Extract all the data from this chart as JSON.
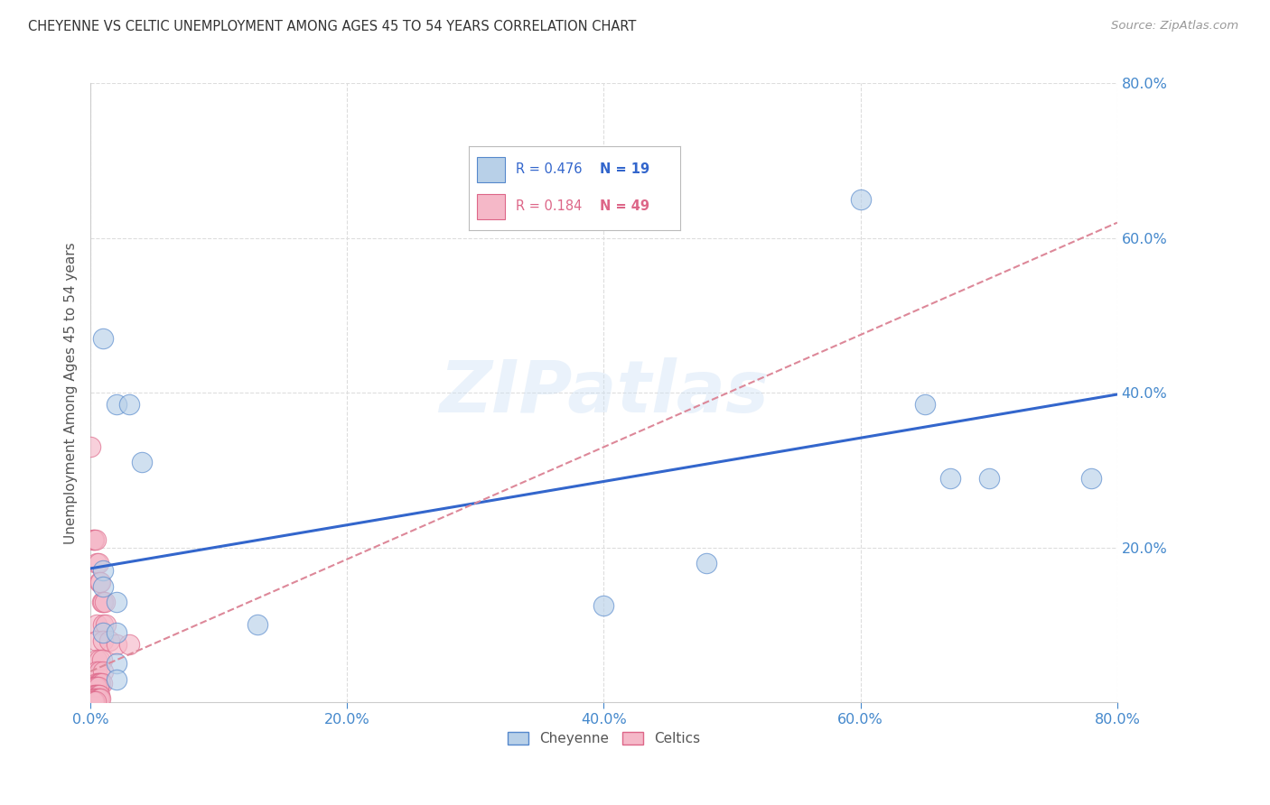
{
  "title": "CHEYENNE VS CELTIC UNEMPLOYMENT AMONG AGES 45 TO 54 YEARS CORRELATION CHART",
  "source": "Source: ZipAtlas.com",
  "ylabel": "Unemployment Among Ages 45 to 54 years",
  "xlim": [
    0.0,
    0.8
  ],
  "ylim": [
    0.0,
    0.8
  ],
  "xticks": [
    0.0,
    0.2,
    0.4,
    0.6,
    0.8
  ],
  "yticks": [
    0.2,
    0.4,
    0.6,
    0.8
  ],
  "cheyenne_color": "#b8d0e8",
  "celtics_color": "#f5b8c8",
  "cheyenne_edge_color": "#5588cc",
  "celtics_edge_color": "#dd6688",
  "cheyenne_line_color": "#3366cc",
  "celtics_line_color": "#dd8899",
  "grid_color": "#dddddd",
  "tick_color": "#4488cc",
  "legend_R_cheyenne": "0.476",
  "legend_N_cheyenne": "19",
  "legend_R_celtics": "0.184",
  "legend_N_celtics": "49",
  "cheyenne_line": [
    0.0,
    0.173,
    0.8,
    0.398
  ],
  "celtics_line": [
    0.0,
    0.04,
    0.8,
    0.62
  ],
  "cheyenne_points": [
    [
      0.01,
      0.47
    ],
    [
      0.02,
      0.385
    ],
    [
      0.03,
      0.385
    ],
    [
      0.04,
      0.31
    ],
    [
      0.01,
      0.17
    ],
    [
      0.01,
      0.15
    ],
    [
      0.02,
      0.13
    ],
    [
      0.13,
      0.1
    ],
    [
      0.01,
      0.09
    ],
    [
      0.02,
      0.09
    ],
    [
      0.4,
      0.125
    ],
    [
      0.48,
      0.18
    ],
    [
      0.6,
      0.65
    ],
    [
      0.65,
      0.385
    ],
    [
      0.67,
      0.29
    ],
    [
      0.7,
      0.29
    ],
    [
      0.78,
      0.29
    ],
    [
      0.02,
      0.05
    ],
    [
      0.02,
      0.03
    ]
  ],
  "celtics_points": [
    [
      0.0,
      0.33
    ],
    [
      0.002,
      0.21
    ],
    [
      0.003,
      0.21
    ],
    [
      0.004,
      0.21
    ],
    [
      0.005,
      0.18
    ],
    [
      0.006,
      0.18
    ],
    [
      0.007,
      0.155
    ],
    [
      0.008,
      0.155
    ],
    [
      0.009,
      0.13
    ],
    [
      0.01,
      0.13
    ],
    [
      0.011,
      0.13
    ],
    [
      0.005,
      0.1
    ],
    [
      0.01,
      0.1
    ],
    [
      0.012,
      0.1
    ],
    [
      0.005,
      0.08
    ],
    [
      0.01,
      0.08
    ],
    [
      0.015,
      0.08
    ],
    [
      0.02,
      0.075
    ],
    [
      0.03,
      0.075
    ],
    [
      0.005,
      0.055
    ],
    [
      0.007,
      0.055
    ],
    [
      0.009,
      0.055
    ],
    [
      0.005,
      0.04
    ],
    [
      0.007,
      0.04
    ],
    [
      0.01,
      0.04
    ],
    [
      0.005,
      0.025
    ],
    [
      0.006,
      0.025
    ],
    [
      0.007,
      0.025
    ],
    [
      0.008,
      0.025
    ],
    [
      0.009,
      0.025
    ],
    [
      0.003,
      0.02
    ],
    [
      0.004,
      0.02
    ],
    [
      0.005,
      0.02
    ],
    [
      0.006,
      0.02
    ],
    [
      0.003,
      0.01
    ],
    [
      0.004,
      0.01
    ],
    [
      0.005,
      0.01
    ],
    [
      0.006,
      0.01
    ],
    [
      0.007,
      0.01
    ],
    [
      0.002,
      0.005
    ],
    [
      0.003,
      0.005
    ],
    [
      0.004,
      0.005
    ],
    [
      0.005,
      0.005
    ],
    [
      0.006,
      0.005
    ],
    [
      0.007,
      0.005
    ],
    [
      0.008,
      0.005
    ],
    [
      0.002,
      0.002
    ],
    [
      0.003,
      0.002
    ],
    [
      0.004,
      0.002
    ]
  ],
  "watermark": "ZIPatlas",
  "background_color": "#ffffff"
}
